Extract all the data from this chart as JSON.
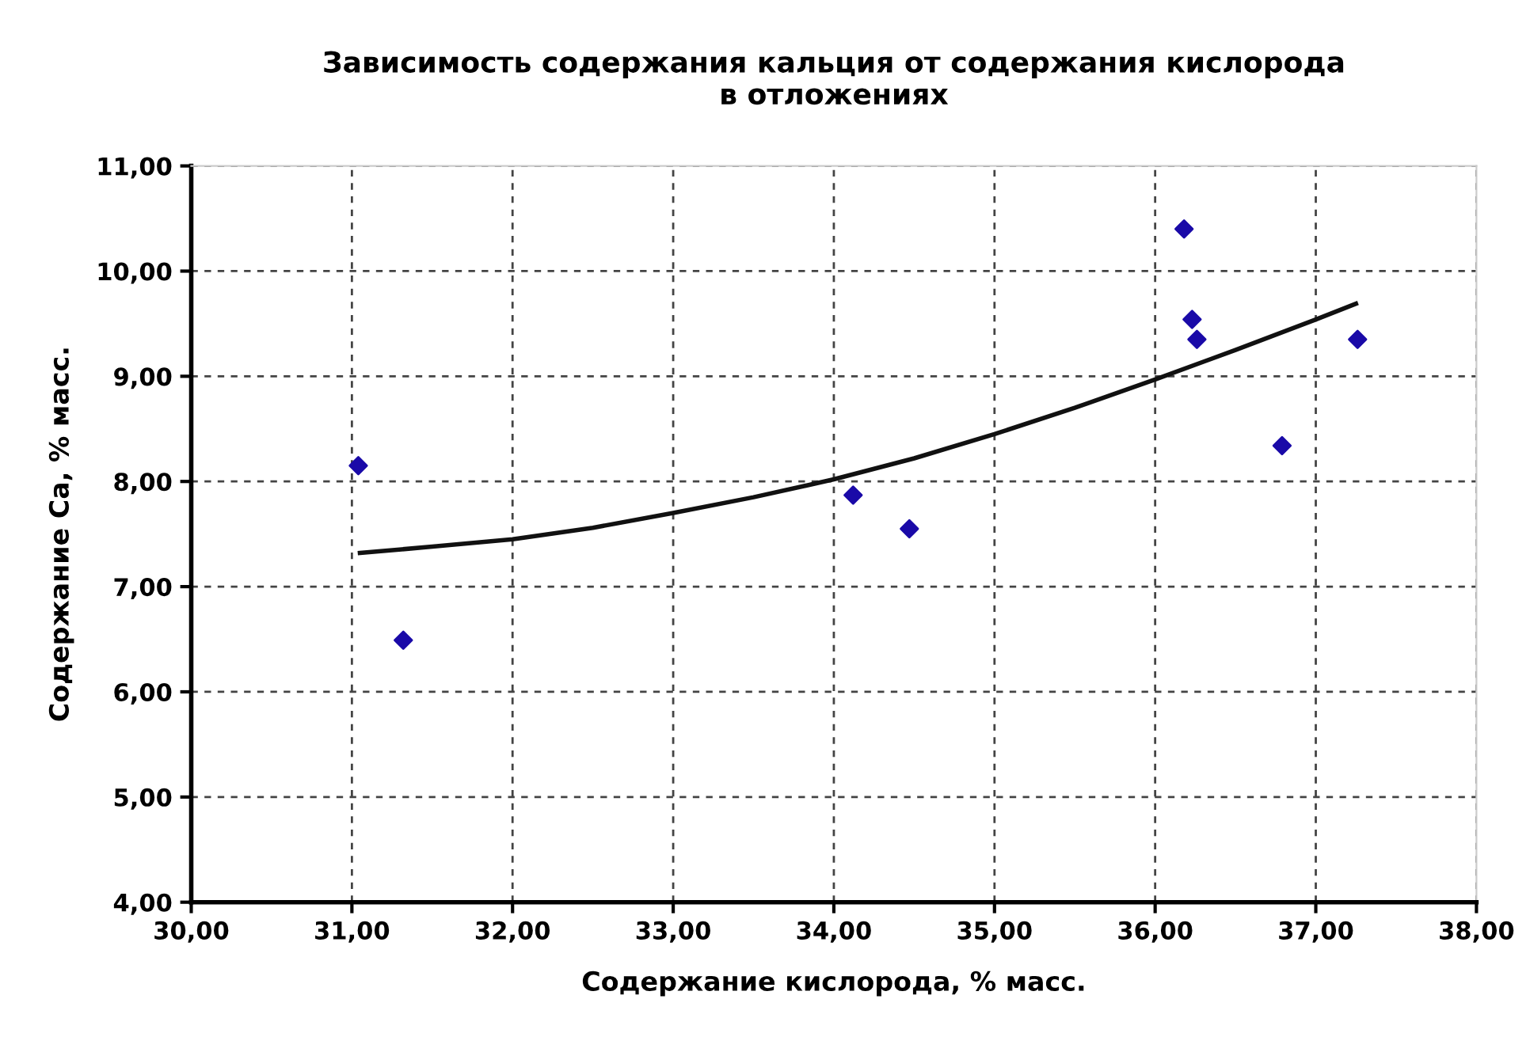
{
  "chart_data": {
    "type": "scatter",
    "title": "Зависимость содержания кальция от содержания кислорода\nв отложениях",
    "xlabel": "Содержание кислорода, % масс.",
    "ylabel": "Содержание Ca, % масс.",
    "xlim": [
      30,
      38
    ],
    "ylim": [
      4,
      11
    ],
    "xticks": [
      {
        "value": 30,
        "label": "30,00"
      },
      {
        "value": 31,
        "label": "31,00"
      },
      {
        "value": 32,
        "label": "32,00"
      },
      {
        "value": 33,
        "label": "33,00"
      },
      {
        "value": 34,
        "label": "34,00"
      },
      {
        "value": 35,
        "label": "35,00"
      },
      {
        "value": 36,
        "label": "36,00"
      },
      {
        "value": 37,
        "label": "37,00"
      },
      {
        "value": 38,
        "label": "38,00"
      }
    ],
    "yticks": [
      {
        "value": 4,
        "label": "4,00"
      },
      {
        "value": 5,
        "label": "5,00"
      },
      {
        "value": 6,
        "label": "6,00"
      },
      {
        "value": 7,
        "label": "7,00"
      },
      {
        "value": 8,
        "label": "8,00"
      },
      {
        "value": 9,
        "label": "9,00"
      },
      {
        "value": 10,
        "label": "10,00"
      },
      {
        "value": 11,
        "label": "11,00"
      }
    ],
    "grid": true,
    "series": [
      {
        "color": "#1a0aa8",
        "marker": "diamond",
        "x": [
          31.04,
          31.32,
          34.12,
          34.47,
          36.18,
          36.23,
          36.26,
          36.79,
          37.26
        ],
        "values": [
          8.15,
          6.49,
          7.87,
          7.55,
          10.4,
          9.54,
          9.35,
          8.34,
          9.35
        ]
      },
      {
        "type": "line",
        "color": "#111111",
        "marker": "none",
        "line_style": "solid",
        "x": [
          31.05,
          31.5,
          32,
          32.5,
          33,
          33.5,
          34,
          34.5,
          35,
          35.5,
          36,
          36.5,
          37,
          37.25
        ],
        "values": [
          7.32,
          7.38,
          7.45,
          7.56,
          7.7,
          7.85,
          8.02,
          8.22,
          8.45,
          8.7,
          8.97,
          9.25,
          9.54,
          9.69
        ]
      }
    ]
  }
}
